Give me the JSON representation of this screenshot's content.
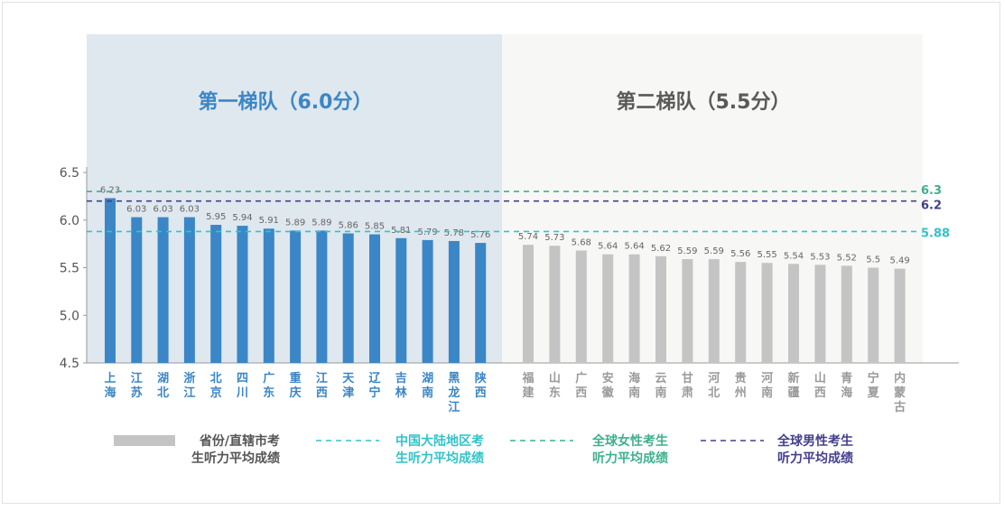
{
  "chart_data": {
    "type": "bar",
    "tiers": [
      {
        "name": "第一梯队（6.0分）",
        "color": "#3b86c6",
        "background": "#dfe7ef",
        "text_color": "#3b86c6",
        "count": 15
      },
      {
        "name": "第二梯队（5.5分）",
        "color": "#c4c4c4",
        "background": "#f7f7f6",
        "text_color": "#595959",
        "count": 15
      }
    ],
    "categories": [
      "上海",
      "江苏",
      "湖北",
      "浙江",
      "北京",
      "四川",
      "广东",
      "重庆",
      "江西",
      "天津",
      "辽宁",
      "吉林",
      "湖南",
      "黑龙江",
      "陕西",
      "福建",
      "山东",
      "广西",
      "安徽",
      "海南",
      "云南",
      "甘肃",
      "河北",
      "贵州",
      "河南",
      "新疆",
      "山西",
      "青海",
      "宁夏",
      "内蒙古"
    ],
    "values": [
      6.23,
      6.03,
      6.03,
      6.03,
      5.95,
      5.94,
      5.91,
      5.89,
      5.89,
      5.86,
      5.85,
      5.81,
      5.79,
      5.78,
      5.76,
      5.74,
      5.73,
      5.68,
      5.64,
      5.64,
      5.62,
      5.59,
      5.59,
      5.56,
      5.55,
      5.54,
      5.53,
      5.52,
      5.5,
      5.49
    ],
    "value_labels": [
      "6.23",
      "6.03",
      "6.03",
      "6.03",
      "5.95",
      "5.94",
      "5.91",
      "5.89",
      "5.89",
      "5.86",
      "5.85",
      "5.81",
      "5.79",
      "5.78",
      "5.76",
      "5.74",
      "5.73",
      "5.68",
      "5.64",
      "5.64",
      "5.62",
      "5.59",
      "5.59",
      "5.56",
      "5.55",
      "5.54",
      "5.53",
      "5.52",
      "5.5",
      "5.49"
    ],
    "ylim": [
      4.5,
      6.5
    ],
    "yticks": [
      "6.5",
      "6.0",
      "5.5",
      "5.0",
      "4.5"
    ],
    "reference_lines": [
      {
        "key": "female",
        "value": 6.3,
        "label": "6.3",
        "color": "#3fb08e"
      },
      {
        "key": "male",
        "value": 6.2,
        "label": "6.2",
        "color": "#443f8e"
      },
      {
        "key": "mainland",
        "value": 5.88,
        "label": "5.88",
        "color": "#32c3c9"
      }
    ],
    "legend": [
      {
        "type": "bar",
        "color": "#c4c4c4",
        "text_color": "#555555",
        "lines": [
          "省份/直辖市考",
          "生听力平均成绩"
        ]
      },
      {
        "type": "dashed",
        "color": "#32c3c9",
        "text_color": "#32c3c9",
        "lines": [
          "中国大陆地区考",
          "生听力平均成绩"
        ]
      },
      {
        "type": "dashed",
        "color": "#3fb08e",
        "text_color": "#3fb08e",
        "lines": [
          "全球女性考生",
          "听力平均成绩"
        ]
      },
      {
        "type": "dashed",
        "color": "#443f8e",
        "text_color": "#443f8e",
        "lines": [
          "全球男性考生",
          "听力平均成绩"
        ]
      }
    ],
    "legend_position": "bottom",
    "grid": false
  }
}
